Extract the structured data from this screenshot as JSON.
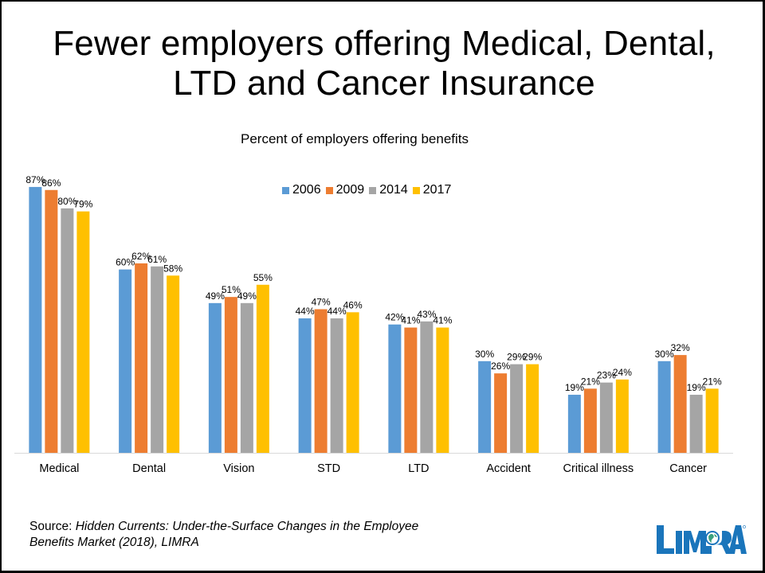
{
  "slide": {
    "title_line1": "Fewer employers offering Medical, Dental,",
    "title_line2": "LTD and Cancer Insurance",
    "source_prefix": "Source: ",
    "source_italic_line1": "Hidden Currents: Under-the-Surface Changes in the Employee",
    "source_italic_line2": "Benefits Market (2018), LIMRA",
    "logo_text": "LIMRA",
    "logo_color": "#1a75bb"
  },
  "chart_data": {
    "type": "bar",
    "title": "Percent of employers offering benefits",
    "xlabel": "",
    "ylabel": "",
    "ylim": [
      0,
      100
    ],
    "grid": false,
    "legend_position": "top-center",
    "categories": [
      "Medical",
      "Dental",
      "Vision",
      "STD",
      "LTD",
      "Accident",
      "Critical illness",
      "Cancer"
    ],
    "series": [
      {
        "name": "2006",
        "color": "#5b9bd5",
        "values": [
          87,
          60,
          49,
          44,
          42,
          30,
          19,
          30
        ]
      },
      {
        "name": "2009",
        "color": "#ed7d31",
        "values": [
          86,
          62,
          51,
          47,
          41,
          26,
          21,
          32
        ]
      },
      {
        "name": "2014",
        "color": "#a5a5a5",
        "values": [
          80,
          61,
          49,
          44,
          43,
          29,
          23,
          19
        ]
      },
      {
        "name": "2017",
        "color": "#ffc000",
        "values": [
          79,
          58,
          55,
          46,
          41,
          29,
          24,
          21
        ]
      }
    ],
    "value_suffix": "%"
  }
}
